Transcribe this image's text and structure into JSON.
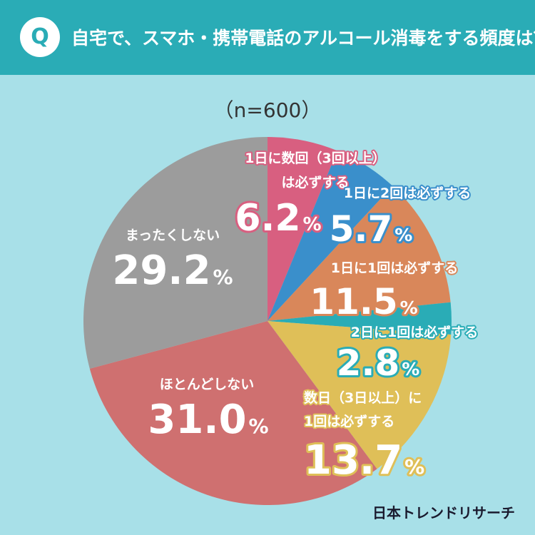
{
  "header": {
    "badge": "Q",
    "question": "自宅で、スマホ・携帯電話のアルコール消毒をする頻度は？"
  },
  "sample": "（n=600）",
  "brand": "日本トレンドリサーチ",
  "colors": {
    "background": "#a8e0e8",
    "header": "#2aacb6"
  },
  "chart_data": {
    "type": "pie",
    "title": "自宅で、スマホ・携帯電話のアルコール消毒をする頻度は？",
    "unit": "%",
    "slices": [
      {
        "label_lines": [
          "1日に数回（3回以上）",
          "は必ずする"
        ],
        "value": 6.2,
        "value_text": "6.2",
        "color": "#d85f80"
      },
      {
        "label_lines": [
          "1日に2回は必ずする"
        ],
        "value": 5.7,
        "value_text": "5.7",
        "color": "#3a8fcb"
      },
      {
        "label_lines": [
          "1日に1回は必ずする"
        ],
        "value": 11.5,
        "value_text": "11.5",
        "color": "#d9875a"
      },
      {
        "label_lines": [
          "2日に1回は必ずする"
        ],
        "value": 2.8,
        "value_text": "2.8",
        "color": "#2aacb6"
      },
      {
        "label_lines": [
          "数日（3日以上）に",
          "1回は必ずする"
        ],
        "value": 13.7,
        "value_text": "13.7",
        "color": "#dfbf58"
      },
      {
        "label_lines": [
          "ほとんどしない"
        ],
        "value": 31.0,
        "value_text": "31.0",
        "color": "#cf7070"
      },
      {
        "label_lines": [
          "まったくしない"
        ],
        "value": 29.2,
        "value_text": "29.2",
        "color": "#9c9c9c"
      }
    ]
  }
}
